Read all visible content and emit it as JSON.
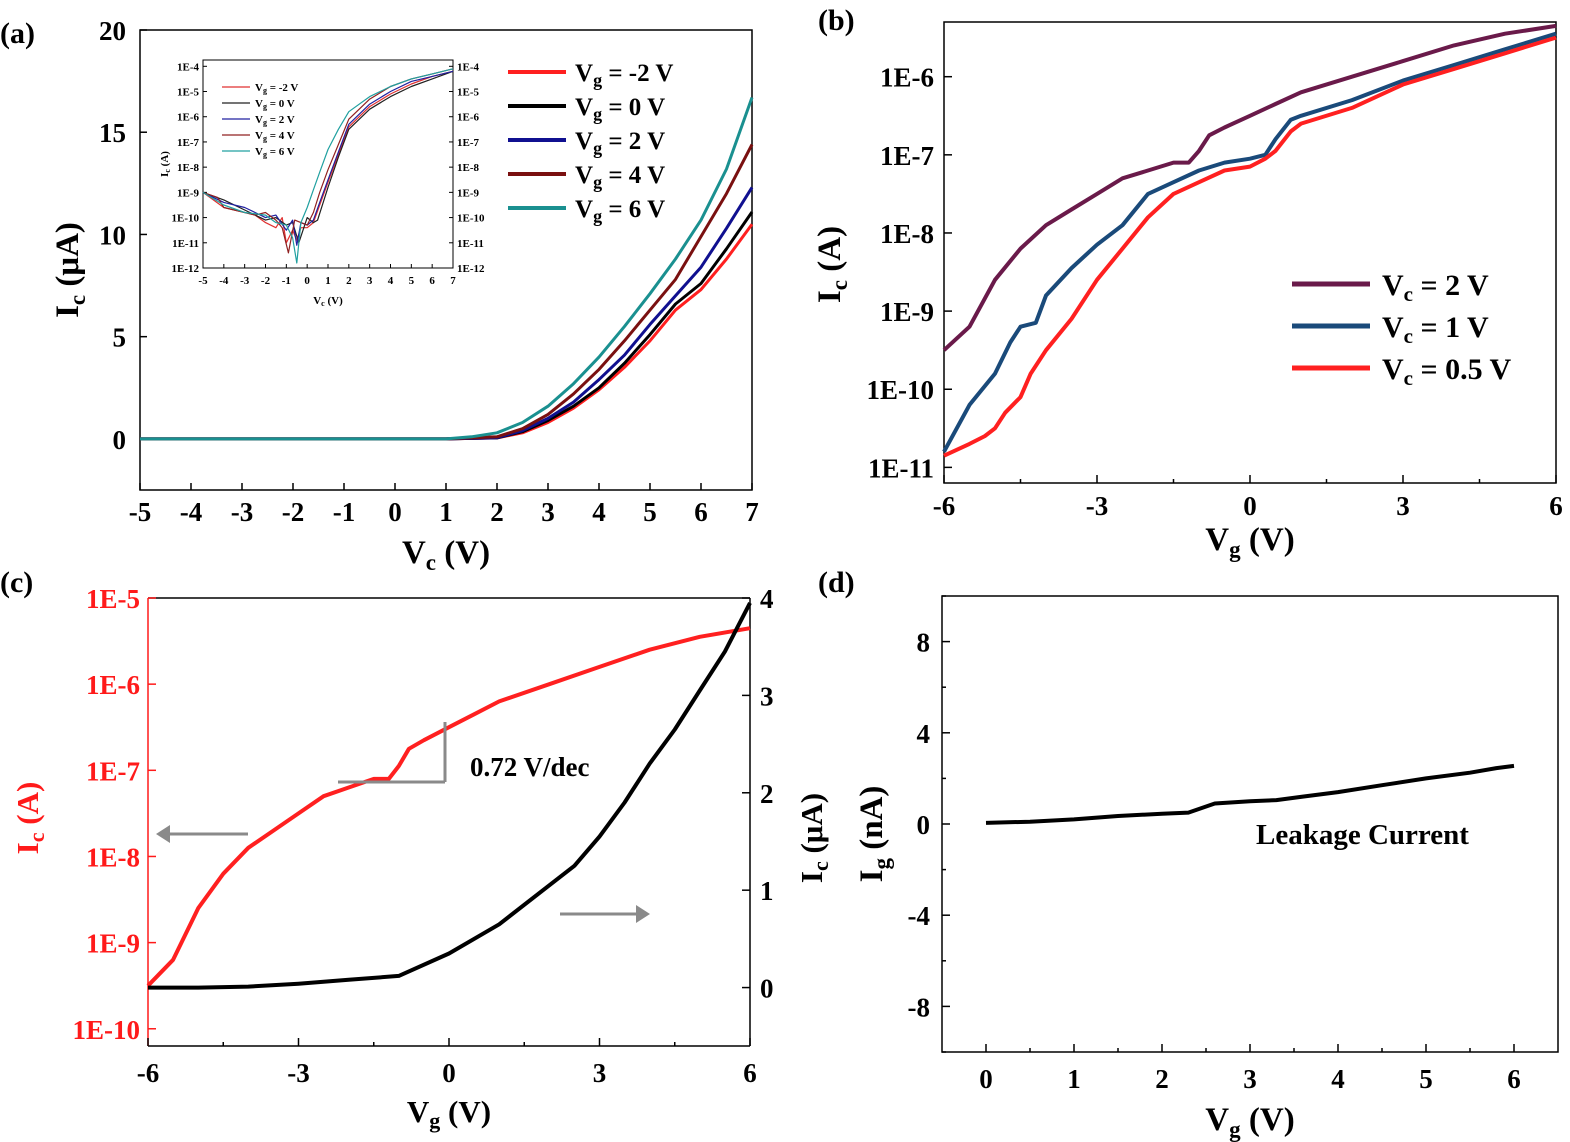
{
  "chart_data": [
    {
      "panel_label": "(a)",
      "type": "line",
      "xlabel": {
        "main": "V",
        "sub": "c",
        "rest": " (V)"
      },
      "ylabel": {
        "main": "I",
        "sub": "c",
        "rest": " (μA)"
      },
      "xlim": [
        -5,
        7
      ],
      "ylim": [
        -2.5,
        20
      ],
      "xticks": [
        -5,
        -4,
        -3,
        -2,
        -1,
        0,
        1,
        2,
        3,
        4,
        5,
        6,
        7
      ],
      "yticks": [
        0,
        5,
        10,
        15,
        20
      ],
      "legend_position": "top-right",
      "legend": [
        {
          "main": "V",
          "sub": "g",
          "rest": " = -2 V"
        },
        {
          "main": "V",
          "sub": "g",
          "rest": " =  0 V"
        },
        {
          "main": "V",
          "sub": "g",
          "rest": " =  2 V"
        },
        {
          "main": "V",
          "sub": "g",
          "rest": " =  4 V"
        },
        {
          "main": "V",
          "sub": "g",
          "rest": " =  6 V"
        }
      ],
      "series": [
        {
          "color": "#ff2020",
          "x": [
            -5,
            1,
            2,
            2.5,
            3,
            3.5,
            4,
            4.5,
            5,
            5.5,
            6,
            6.5,
            7
          ],
          "y": [
            0,
            0,
            0.05,
            0.3,
            0.8,
            1.5,
            2.4,
            3.5,
            4.8,
            6.3,
            7.3,
            8.8,
            10.5
          ]
        },
        {
          "color": "#000000",
          "x": [
            -5,
            1,
            2,
            2.5,
            3,
            3.5,
            4,
            4.5,
            5,
            5.5,
            6,
            6.5,
            7
          ],
          "y": [
            0,
            0,
            0.05,
            0.35,
            0.9,
            1.6,
            2.5,
            3.7,
            5.1,
            6.6,
            7.6,
            9.3,
            11.1
          ]
        },
        {
          "color": "#101090",
          "x": [
            -5,
            1,
            2,
            2.5,
            3,
            3.5,
            4,
            4.5,
            5,
            5.5,
            6,
            6.5,
            7
          ],
          "y": [
            0,
            0,
            0.06,
            0.4,
            1.0,
            1.8,
            2.9,
            4.1,
            5.6,
            7.0,
            8.4,
            10.3,
            12.3
          ]
        },
        {
          "color": "#7a1010",
          "x": [
            -5,
            1,
            2,
            2.5,
            3,
            3.5,
            4,
            4.5,
            5,
            5.5,
            6,
            6.5,
            7
          ],
          "y": [
            0,
            0,
            0.1,
            0.5,
            1.2,
            2.2,
            3.4,
            4.8,
            6.3,
            7.8,
            9.9,
            12.0,
            14.4
          ]
        },
        {
          "color": "#1a9090",
          "x": [
            -5,
            1,
            1.5,
            2,
            2.5,
            3,
            3.5,
            4,
            4.5,
            5,
            5.5,
            6,
            6.5,
            7
          ],
          "y": [
            0,
            0,
            0.1,
            0.3,
            0.8,
            1.6,
            2.7,
            4.0,
            5.5,
            7.1,
            8.8,
            10.7,
            13.2,
            16.7
          ]
        }
      ],
      "inset": {
        "type": "line",
        "ylabel": {
          "main": "I",
          "sub": "c",
          "rest": " (A)"
        },
        "xlabel": {
          "main": "V",
          "sub": "c",
          "rest": " (V)"
        },
        "xlim": [
          -5,
          7
        ],
        "ylim_log": [
          -12,
          -3.75
        ],
        "xticks": [
          -5,
          -4,
          -3,
          -2,
          -1,
          0,
          1,
          2,
          3,
          4,
          5,
          6,
          7
        ],
        "ytick_labels": [
          "1E-4",
          "1E-5",
          "1E-6",
          "1E-7",
          "1E-8",
          "1E-9",
          "1E-10",
          "1E-11",
          "1E-12"
        ],
        "legend": [
          {
            "main": "V",
            "sub": "g",
            "rest": " = -2 V"
          },
          {
            "main": "V",
            "sub": "g",
            "rest": " = 0 V"
          },
          {
            "main": "V",
            "sub": "g",
            "rest": " = 2 V"
          },
          {
            "main": "V",
            "sub": "g",
            "rest": " = 4 V"
          },
          {
            "main": "V",
            "sub": "g",
            "rest": " = 6 V"
          }
        ],
        "series": [
          {
            "color": "#e03030",
            "x": [
              -5,
              -4,
              -3,
              -2.5,
              -2,
              -1.5,
              -1.2,
              -1,
              -0.7,
              -0.5,
              -0.3,
              0,
              0.3,
              0.6,
              1,
              1.5,
              2,
              3,
              4,
              5,
              6,
              7
            ],
            "y": [
              -9,
              -9.6,
              -9.8,
              -9.9,
              -10.2,
              -10.4,
              -10,
              -11.0,
              -10.5,
              -10.9,
              -10.4,
              -10.4,
              -10.2,
              -9.5,
              -8.6,
              -7.5,
              -6.4,
              -5.6,
              -5.1,
              -4.7,
              -4.4,
              -4.2
            ]
          },
          {
            "color": "#202020",
            "x": [
              -5,
              -4,
              -3,
              -2.5,
              -2,
              -1.5,
              -1,
              -0.7,
              -0.4,
              0,
              0.3,
              0.5,
              1,
              1.5,
              2,
              3,
              4,
              5,
              6,
              7
            ],
            "y": [
              -9,
              -9.3,
              -9.7,
              -9.9,
              -10.1,
              -10.0,
              -10.3,
              -10.2,
              -11.0,
              -10.0,
              -10.2,
              -10.1,
              -8.8,
              -7.6,
              -6.5,
              -5.7,
              -5.2,
              -4.8,
              -4.5,
              -4.2
            ]
          },
          {
            "color": "#2020a0",
            "x": [
              -5,
              -4,
              -3,
              -2.5,
              -2,
              -1.5,
              -1,
              -0.7,
              -0.5,
              -0.3,
              0,
              0.3,
              0.6,
              1,
              1.5,
              2,
              3,
              4,
              5,
              6,
              7
            ],
            "y": [
              -9,
              -9.4,
              -9.6,
              -9.8,
              -10.0,
              -9.9,
              -10.5,
              -10.1,
              -11.1,
              -10.2,
              -10.3,
              -10.1,
              -9.4,
              -8.5,
              -7.4,
              -6.3,
              -5.5,
              -5.0,
              -4.6,
              -4.4,
              -4.2
            ]
          },
          {
            "color": "#902020",
            "x": [
              -5,
              -4.3,
              -4,
              -3,
              -2.5,
              -2,
              -1.5,
              -1.2,
              -0.9,
              -0.6,
              -0.3,
              0,
              0.3,
              0.6,
              1,
              1.5,
              2,
              3,
              4,
              5,
              6,
              7
            ],
            "y": [
              -9,
              -9.2,
              -9.6,
              -9.8,
              -9.9,
              -9.8,
              -10.1,
              -10.4,
              -11.4,
              -10.1,
              -10.2,
              -10.3,
              -9.8,
              -9.0,
              -8.1,
              -7.1,
              -6.1,
              -5.3,
              -4.8,
              -4.5,
              -4.3,
              -4.1
            ]
          },
          {
            "color": "#20a0a0",
            "x": [
              -5,
              -4,
              -3,
              -2,
              -1.5,
              -1,
              -0.7,
              -0.5,
              -0.3,
              0,
              0.3,
              0.6,
              1,
              1.5,
              2,
              3,
              4,
              5,
              6,
              7
            ],
            "y": [
              -9,
              -9.5,
              -9.8,
              -9.9,
              -10.2,
              -10.3,
              -10.8,
              -11.8,
              -10.2,
              -9.6,
              -8.9,
              -8.2,
              -7.3,
              -6.5,
              -5.8,
              -5.2,
              -4.8,
              -4.5,
              -4.3,
              -4.1
            ]
          }
        ]
      }
    },
    {
      "panel_label": "(b)",
      "type": "line",
      "xlabel": {
        "main": "V",
        "sub": "g",
        "rest": " (V)"
      },
      "ylabel": {
        "main": "I",
        "sub": "c",
        "rest": " (A)"
      },
      "xlim": [
        -6,
        6
      ],
      "ylim_log": [
        -11.2,
        -5.3
      ],
      "xticks": [
        -6,
        -3,
        0,
        3,
        6
      ],
      "ytick_labels": [
        "1E-6",
        "1E-7",
        "1E-8",
        "1E-9",
        "1E-10",
        "1E-11"
      ],
      "legend_position": "bottom-right",
      "legend": [
        {
          "main": "V",
          "sub": "c",
          "rest": " = 2 V"
        },
        {
          "main": "V",
          "sub": "c",
          "rest": " = 1 V"
        },
        {
          "main": "V",
          "sub": "c",
          "rest": " = 0.5 V"
        }
      ],
      "series": [
        {
          "color": "#6a1a4a",
          "x": [
            -6,
            -5.5,
            -5,
            -4.5,
            -4,
            -3.5,
            -3,
            -2.5,
            -2,
            -1.5,
            -1.2,
            -1,
            -0.8,
            -0.5,
            0,
            0.5,
            1,
            2,
            3,
            4,
            5,
            6
          ],
          "y": [
            -9.5,
            -9.2,
            -8.6,
            -8.2,
            -7.9,
            -7.7,
            -7.5,
            -7.3,
            -7.2,
            -7.1,
            -7.1,
            -6.95,
            -6.75,
            -6.65,
            -6.5,
            -6.35,
            -6.2,
            -6.0,
            -5.8,
            -5.6,
            -5.45,
            -5.35
          ]
        },
        {
          "color": "#1a4a7a",
          "x": [
            -6,
            -5.5,
            -5,
            -4.7,
            -4.5,
            -4.2,
            -4,
            -3.5,
            -3,
            -2.5,
            -2,
            -1.5,
            -1,
            -0.5,
            0,
            0.3,
            0.5,
            0.8,
            1,
            2,
            3,
            4,
            5,
            6
          ],
          "y": [
            -10.8,
            -10.2,
            -9.8,
            -9.4,
            -9.2,
            -9.15,
            -8.8,
            -8.45,
            -8.15,
            -7.9,
            -7.5,
            -7.35,
            -7.2,
            -7.1,
            -7.05,
            -7.0,
            -6.8,
            -6.55,
            -6.5,
            -6.3,
            -6.05,
            -5.85,
            -5.65,
            -5.45
          ]
        },
        {
          "color": "#ff2020",
          "x": [
            -6,
            -5.5,
            -5.2,
            -5,
            -4.8,
            -4.5,
            -4.3,
            -4,
            -3.5,
            -3,
            -2.5,
            -2,
            -1.5,
            -1,
            -0.5,
            0,
            0.3,
            0.5,
            0.8,
            1,
            2,
            3,
            4,
            5,
            6
          ],
          "y": [
            -10.85,
            -10.7,
            -10.6,
            -10.5,
            -10.3,
            -10.1,
            -9.8,
            -9.5,
            -9.1,
            -8.6,
            -8.2,
            -7.8,
            -7.5,
            -7.35,
            -7.2,
            -7.15,
            -7.05,
            -6.95,
            -6.7,
            -6.6,
            -6.4,
            -6.1,
            -5.9,
            -5.7,
            -5.5
          ]
        }
      ]
    },
    {
      "panel_label": "(c)",
      "type": "line",
      "xlabel": {
        "main": "V",
        "sub": "g",
        "rest": " (V)"
      },
      "ylabel_left": {
        "main": "I",
        "sub": "c",
        "rest": " (A)"
      },
      "ylabel_right": {
        "main": "I",
        "sub": "c",
        "rest": " (μA)"
      },
      "xlim": [
        -6,
        6
      ],
      "ylim_left_log": [
        -10.2,
        -5.0
      ],
      "ylim_right": [
        -0.6,
        4.0
      ],
      "xticks": [
        -6,
        -3,
        0,
        3,
        6
      ],
      "yticks_left_labels": [
        "1E-5",
        "1E-6",
        "1E-7",
        "1E-8",
        "1E-9",
        "1E-10"
      ],
      "yticks_right": [
        0,
        1,
        2,
        3,
        4
      ],
      "annotation": "0.72 V/dec",
      "left_axis_color": "#ff1a1a",
      "series": [
        {
          "axis": "left",
          "color": "#ff2020",
          "x": [
            -6,
            -5.5,
            -5,
            -4.5,
            -4,
            -3.5,
            -3,
            -2.5,
            -2,
            -1.5,
            -1.2,
            -1,
            -0.8,
            -0.5,
            0,
            0.5,
            1,
            2,
            3,
            4,
            5,
            6
          ],
          "y": [
            -9.5,
            -9.2,
            -8.6,
            -8.2,
            -7.9,
            -7.7,
            -7.5,
            -7.3,
            -7.2,
            -7.1,
            -7.1,
            -6.95,
            -6.75,
            -6.65,
            -6.5,
            -6.35,
            -6.2,
            -6.0,
            -5.8,
            -5.6,
            -5.45,
            -5.35
          ]
        },
        {
          "axis": "right",
          "color": "#000000",
          "x": [
            -6,
            -5,
            -4,
            -3,
            -2,
            -1,
            0,
            1,
            2,
            2.5,
            3,
            3.5,
            4,
            4.5,
            5,
            5.5,
            6
          ],
          "y": [
            0,
            0,
            0.01,
            0.04,
            0.08,
            0.12,
            0.35,
            0.65,
            1.05,
            1.25,
            1.55,
            1.9,
            2.3,
            2.65,
            3.05,
            3.45,
            3.95
          ]
        }
      ]
    },
    {
      "panel_label": "(d)",
      "type": "line",
      "xlabel": {
        "main": "V",
        "sub": "g",
        "rest": " (V)"
      },
      "ylabel": {
        "main": "I",
        "sub": "g",
        "rest": " (nA)"
      },
      "xlim": [
        -0.5,
        6.5
      ],
      "ylim": [
        -10,
        10
      ],
      "xticks": [
        0,
        1,
        2,
        3,
        4,
        5,
        6
      ],
      "yticks": [
        -8,
        -4,
        0,
        4,
        8
      ],
      "annotation": "Leakage Current",
      "series": [
        {
          "color": "#000000",
          "x": [
            0,
            0.5,
            1,
            1.5,
            2,
            2.3,
            2.6,
            3,
            3.3,
            3.6,
            4,
            4.5,
            5,
            5.5,
            5.8,
            6
          ],
          "y": [
            0.05,
            0.1,
            0.2,
            0.35,
            0.45,
            0.5,
            0.9,
            1.0,
            1.05,
            1.2,
            1.4,
            1.7,
            2.0,
            2.25,
            2.45,
            2.55
          ]
        }
      ]
    }
  ]
}
